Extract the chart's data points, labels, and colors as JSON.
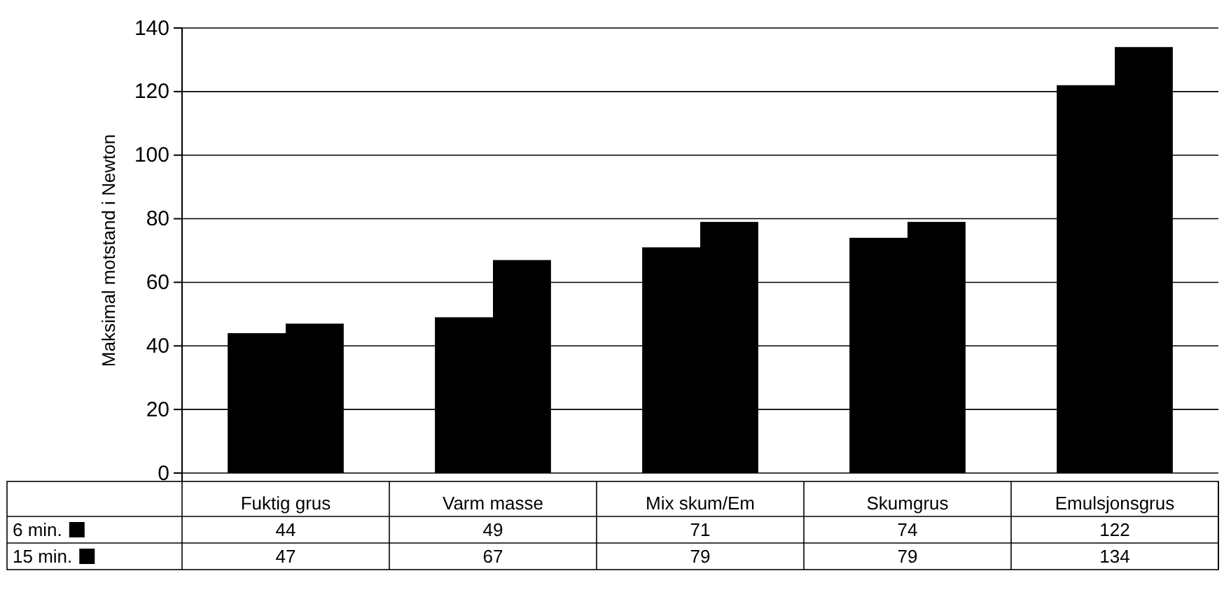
{
  "chart_data": {
    "type": "bar",
    "ylabel": "Maksimal motstand i Newton",
    "categories": [
      "Fuktig grus",
      "Varm masse",
      "Mix skum/Em",
      "Skumgrus",
      "Emulsjonsgrus"
    ],
    "series": [
      {
        "name": "6 min.",
        "color": "#000000",
        "values": [
          44,
          49,
          71,
          74,
          122
        ]
      },
      {
        "name": "15 min.",
        "color": "#000000",
        "values": [
          47,
          67,
          79,
          79,
          134
        ]
      }
    ],
    "ylim": [
      0,
      140
    ],
    "yticks": [
      0,
      20,
      40,
      60,
      80,
      100,
      120,
      140
    ],
    "grid": "y",
    "data_labels": true,
    "legend": "bottom"
  }
}
